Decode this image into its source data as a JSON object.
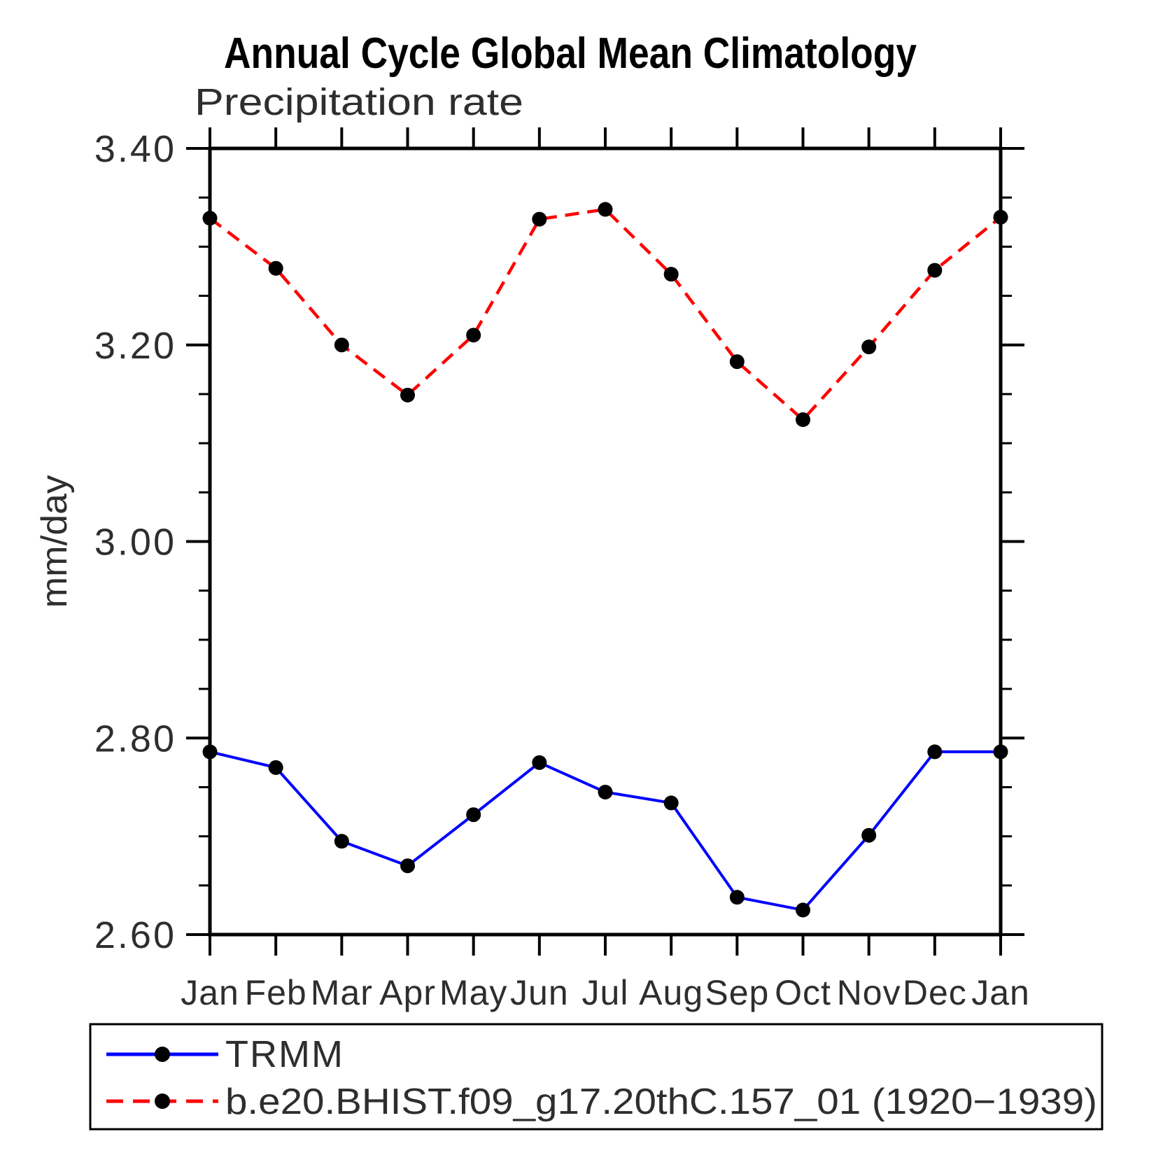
{
  "chart_data": {
    "type": "line",
    "title": "Annual Cycle Global Mean Climatology",
    "subtitle": "Precipitation rate",
    "ylabel": "mm/day",
    "xlabel": "",
    "categories": [
      "Jan",
      "Feb",
      "Mar",
      "Apr",
      "May",
      "Jun",
      "Jul",
      "Aug",
      "Sep",
      "Oct",
      "Nov",
      "Dec",
      "Jan"
    ],
    "ylim": [
      2.6,
      3.4
    ],
    "ytick_major_step": 0.2,
    "ytick_minor_step": 0.05,
    "ytick_labels": [
      "2.60",
      "2.80",
      "3.00",
      "3.20",
      "3.40"
    ],
    "grid": false,
    "legend_position": "bottom-left-box",
    "series": [
      {
        "name": "TRMM",
        "color": "#0000ff",
        "line_style": "solid",
        "marker": "filled-circle",
        "marker_color": "#000000",
        "values": [
          2.786,
          2.77,
          2.695,
          2.67,
          2.722,
          2.775,
          2.745,
          2.734,
          2.638,
          2.625,
          2.701,
          2.786,
          2.786
        ]
      },
      {
        "name": "b.e20.BHIST.f09_g17.20thC.157_01 (1920−1939)",
        "color": "#ff0000",
        "line_style": "dashed",
        "marker": "filled-circle",
        "marker_color": "#000000",
        "values": [
          3.329,
          3.278,
          3.2,
          3.149,
          3.21,
          3.328,
          3.338,
          3.272,
          3.183,
          3.124,
          3.198,
          3.276,
          3.33
        ]
      }
    ]
  },
  "colors": {
    "frame": "#000000",
    "title_text": "#000000",
    "thin_text": "#2e2e2e",
    "trmm_line": "#0000ff",
    "model_line": "#ff0000",
    "marker": "#000000",
    "background": "#ffffff"
  }
}
